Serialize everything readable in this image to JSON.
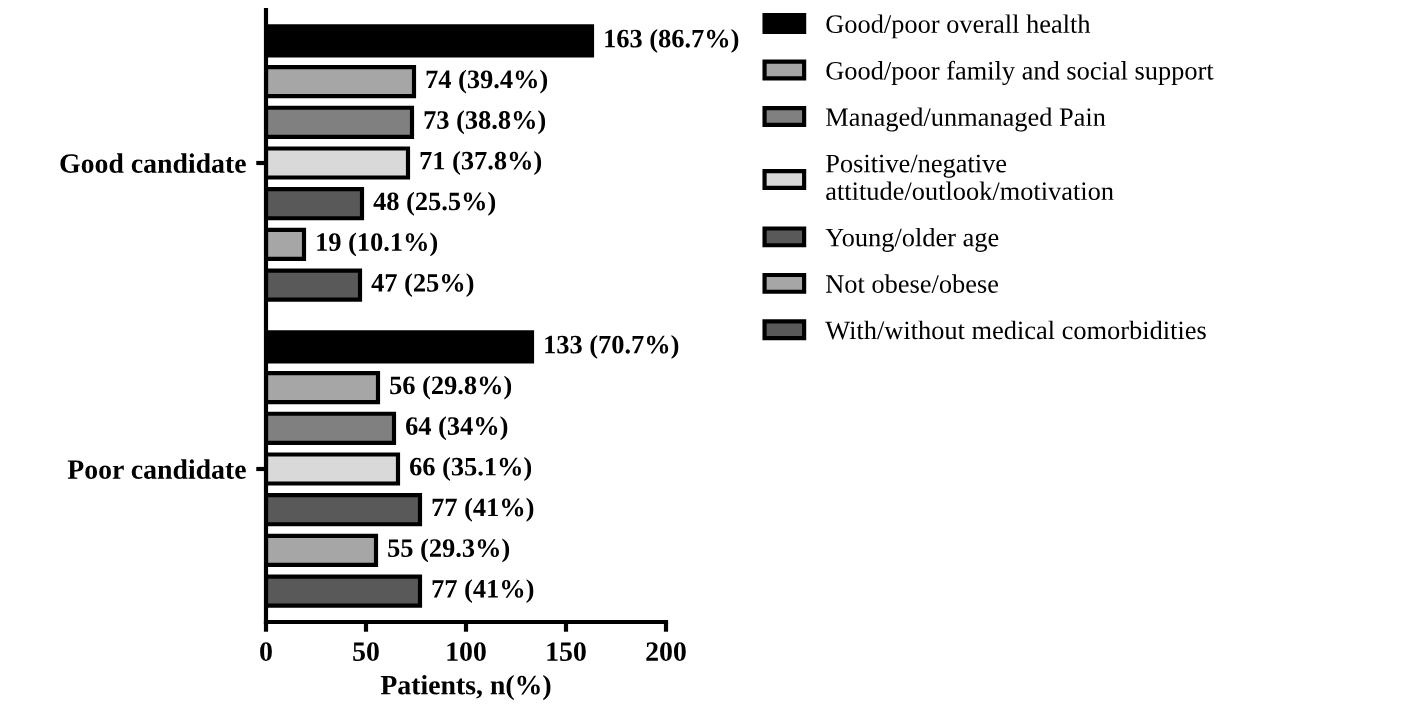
{
  "chart_data": {
    "type": "bar",
    "orientation": "horizontal",
    "categories": [
      "Good candidate",
      "Poor candidate"
    ],
    "xlabel": "Patients, n(%)",
    "xlim": [
      0,
      200
    ],
    "xticks": [
      0,
      50,
      100,
      150,
      200
    ],
    "grid": false,
    "legend": "right",
    "series": [
      {
        "name": "Good/poor overall health",
        "color": "#000000",
        "values": [
          163,
          133
        ],
        "value_labels": [
          "163 (86.7%)",
          "133 (70.7%)"
        ]
      },
      {
        "name": "Good/poor family and social support",
        "color": "#a6a6a6",
        "values": [
          74,
          56
        ],
        "value_labels": [
          "74 (39.4%)",
          "56 (29.8%)"
        ]
      },
      {
        "name": "Managed/unmanaged Pain",
        "color": "#808080",
        "values": [
          73,
          64
        ],
        "value_labels": [
          "73 (38.8%)",
          "64 (34%)"
        ]
      },
      {
        "name": "Positive/negative\nattitude/outlook/motivation",
        "color": "#d9d9d9",
        "values": [
          71,
          66
        ],
        "value_labels": [
          "71 (37.8%)",
          "66 (35.1%)"
        ]
      },
      {
        "name": "Young/older age",
        "color": "#595959",
        "values": [
          48,
          77
        ],
        "value_labels": [
          "48 (25.5%)",
          "77 (41%)"
        ]
      },
      {
        "name": "Not obese/obese",
        "color": "#a6a6a6",
        "values": [
          19,
          55
        ],
        "value_labels": [
          "19 (10.1%)",
          "55 (29.3%)"
        ]
      },
      {
        "name": "With/without medical comorbidities",
        "color": "#595959",
        "values": [
          47,
          77
        ],
        "value_labels": [
          "47 (25%)",
          "77 (41%)"
        ]
      }
    ]
  }
}
